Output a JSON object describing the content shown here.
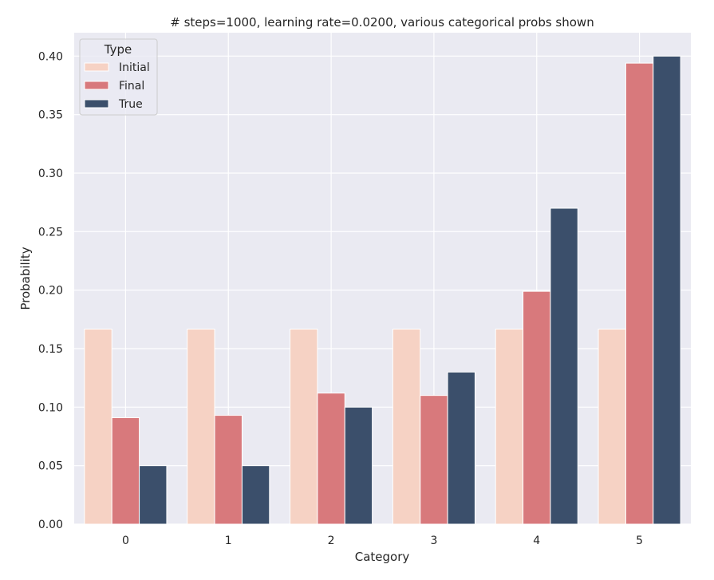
{
  "chart_data": {
    "type": "bar",
    "title": "# steps=1000, learning rate=0.0200, various categorical probs shown",
    "xlabel": "Category",
    "ylabel": "Probability",
    "categories": [
      "0",
      "1",
      "2",
      "3",
      "4",
      "5"
    ],
    "ylim": [
      0,
      0.42
    ],
    "yticks": [
      "0.00",
      "0.05",
      "0.10",
      "0.15",
      "0.20",
      "0.25",
      "0.30",
      "0.35",
      "0.40"
    ],
    "grid": true,
    "legend": {
      "title": "Type",
      "placement": "top-left"
    },
    "series": [
      {
        "name": "Initial",
        "color": "#f6d2c4",
        "values": [
          0.1667,
          0.1667,
          0.1667,
          0.1667,
          0.1667,
          0.1667
        ]
      },
      {
        "name": "Final",
        "color": "#d8797c",
        "values": [
          0.091,
          0.093,
          0.112,
          0.11,
          0.199,
          0.394
        ]
      },
      {
        "name": "True",
        "color": "#3b4f6b",
        "values": [
          0.05,
          0.05,
          0.1,
          0.13,
          0.27,
          0.4
        ]
      }
    ],
    "background": "#eaeaf2"
  }
}
